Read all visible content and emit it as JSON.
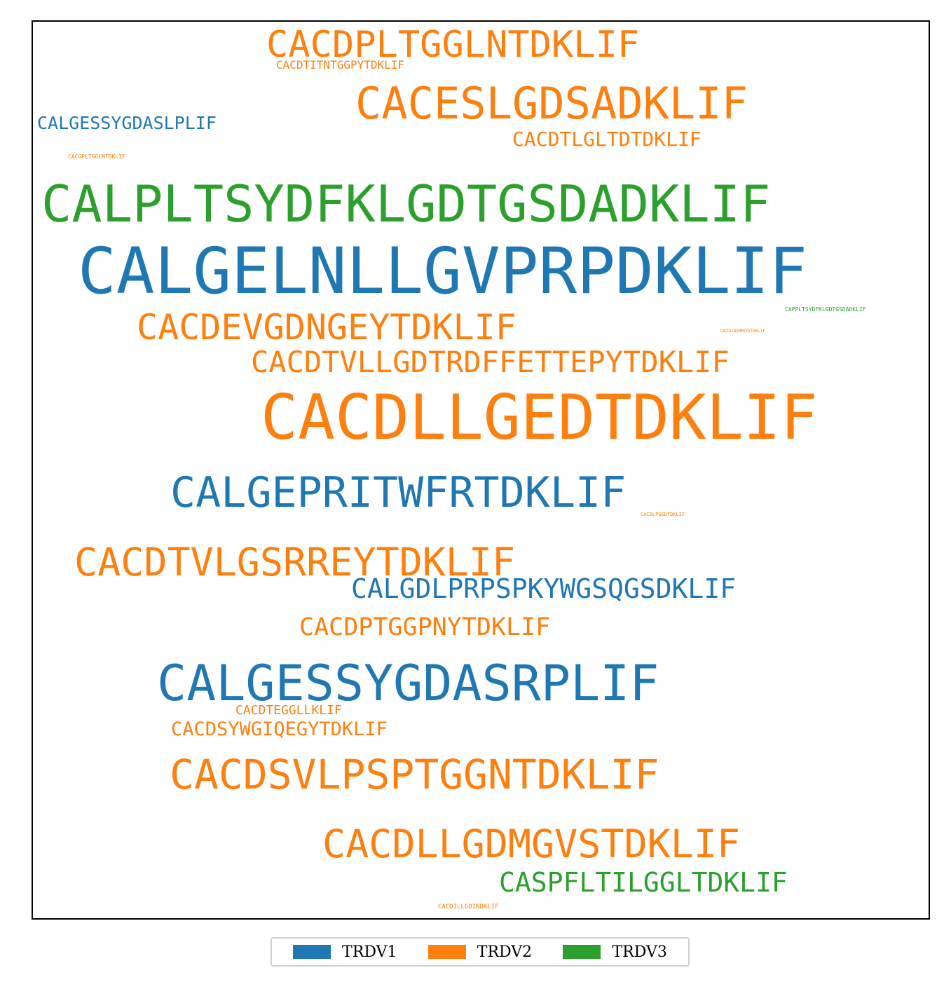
{
  "chart_data": {
    "type": "wordcloud",
    "series": [
      {
        "name": "TRDV1",
        "color": "#1f77b4"
      },
      {
        "name": "TRDV2",
        "color": "#ff7f0e"
      },
      {
        "name": "TRDV3",
        "color": "#2ca02c"
      }
    ],
    "words": [
      {
        "text": "CACDPLTGGLNTDKLIF",
        "series": "TRDV2"
      },
      {
        "text": "CACDTITNTGGPYTDKLIF",
        "series": "TRDV2"
      },
      {
        "text": "CACESLGDSADKLIF",
        "series": "TRDV2"
      },
      {
        "text": "CALGESSYGDASLPLIF",
        "series": "TRDV1"
      },
      {
        "text": "CACDTLGLTDTDKLIF",
        "series": "TRDV2"
      },
      {
        "text": "CACGPLTGGLNTDKLIF",
        "series": "TRDV2"
      },
      {
        "text": "CALPLTSYDFKLGDTGSDADKLIF",
        "series": "TRDV3"
      },
      {
        "text": "CALGELNLLGVPRPDKLIF",
        "series": "TRDV1"
      },
      {
        "text": "CACDEVGDNGEYTDKLIF",
        "series": "TRDV2"
      },
      {
        "text": "CAPPLTSYDFKLGDTGSDADKLIF",
        "series": "TRDV3"
      },
      {
        "text": "CACDLQGDMGVSTDKLIF",
        "series": "TRDV2"
      },
      {
        "text": "CACDTVLLGDTRDFFETTEPYTDKLIF",
        "series": "TRDV2"
      },
      {
        "text": "CACDLLGEDTDKLIF",
        "series": "TRDV2"
      },
      {
        "text": "CALGEPRITWFRTDKLIF",
        "series": "TRDV1"
      },
      {
        "text": "CACDLPGEDTDKLIF",
        "series": "TRDV2"
      },
      {
        "text": "CACDTVLGSRREYTDKLIF",
        "series": "TRDV2"
      },
      {
        "text": "CALGDLPRPSPKYWGSQGSDKLIF",
        "series": "TRDV1"
      },
      {
        "text": "CACDPTGGPNYTDKLIF",
        "series": "TRDV2"
      },
      {
        "text": "CALGESSYGDASRPLIF",
        "series": "TRDV1"
      },
      {
        "text": "CACDTEGGLLKLIF",
        "series": "TRDV2"
      },
      {
        "text": "CACDSYWGIQEGYTDKLIF",
        "series": "TRDV2"
      },
      {
        "text": "CACDSVLPSPTGGNTDKLIF",
        "series": "TRDV2"
      },
      {
        "text": "CACDLLGDMGVSTDKLIF",
        "series": "TRDV2"
      },
      {
        "text": "CASPFLTILGGLTDKLIF",
        "series": "TRDV3"
      },
      {
        "text": "CACDILLGDINDKLIF",
        "series": "TRDV2"
      }
    ]
  }
}
